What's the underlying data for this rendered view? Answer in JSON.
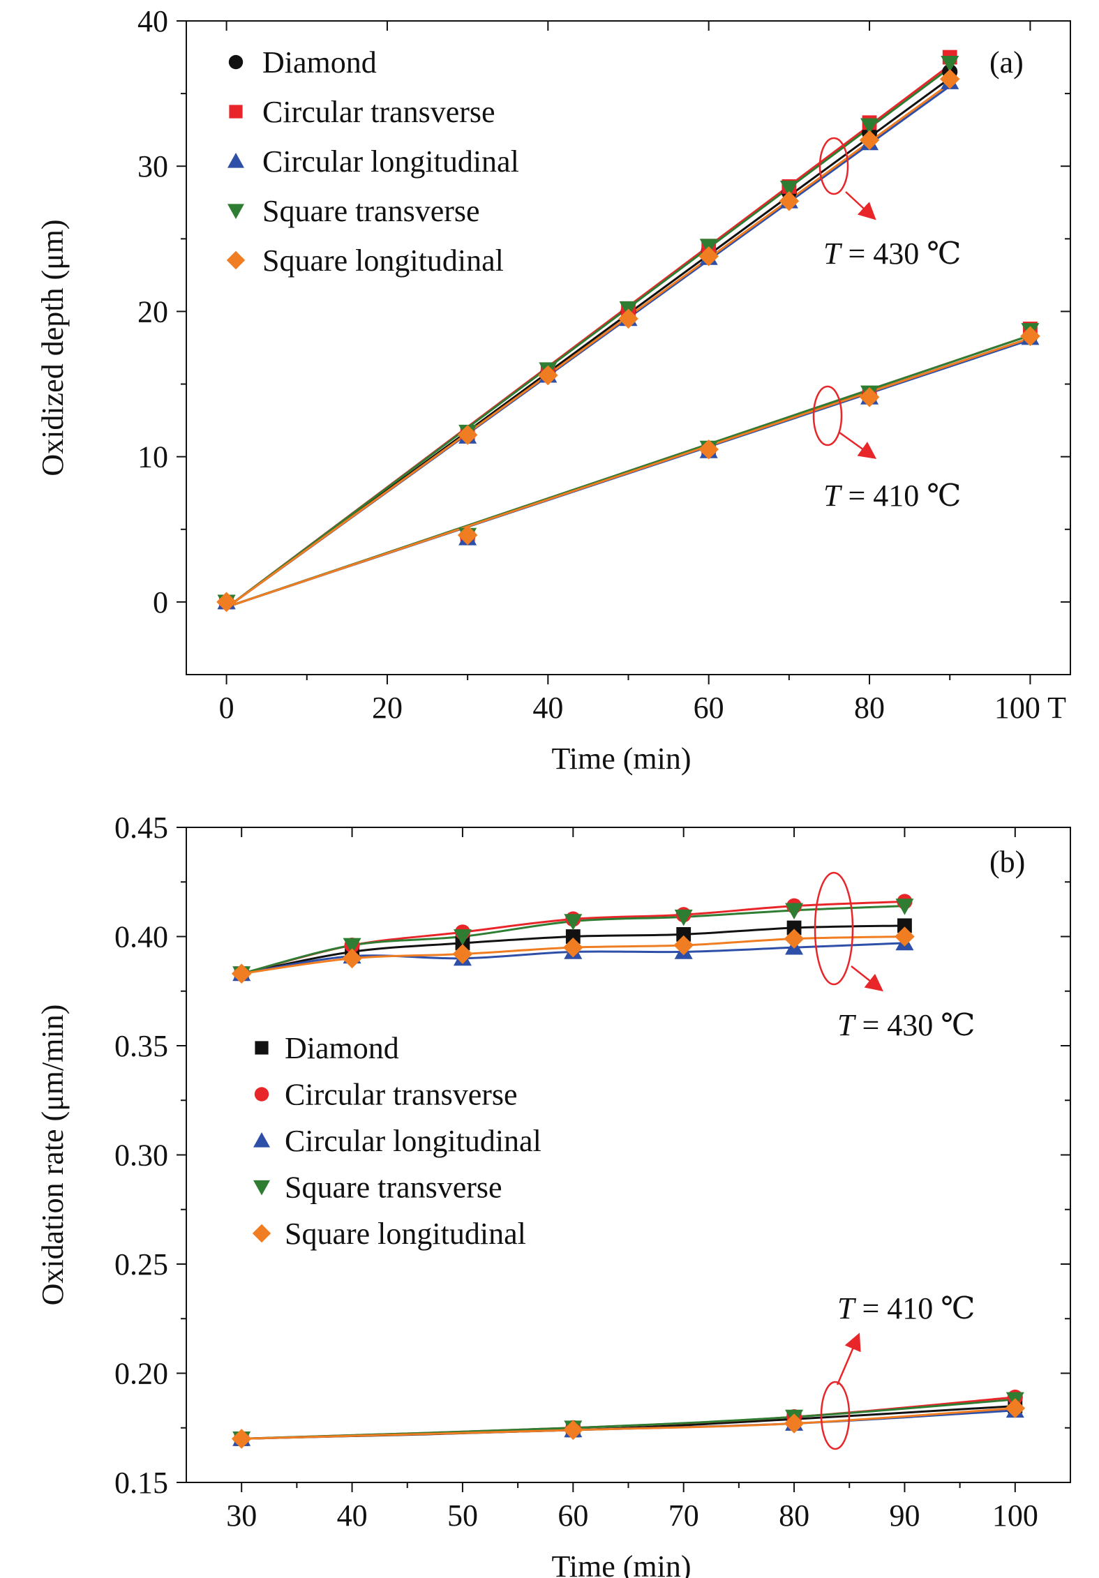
{
  "chart_data": [
    {
      "type": "line",
      "panel_label": "(a)",
      "xlabel": "Time (min)",
      "ylabel": "Oxidized depth (μm)",
      "xlim": [
        -5,
        105
      ],
      "ylim": [
        -5,
        40
      ],
      "xticks": [
        0,
        20,
        40,
        60,
        80,
        100
      ],
      "xtick_labels": [
        "0",
        "20",
        "40",
        "60",
        "80",
        "100 T"
      ],
      "yticks": [
        0,
        10,
        20,
        30,
        40
      ],
      "ytick_labels": [
        "0",
        "10",
        "20",
        "30",
        "40"
      ],
      "legend_position": "top-left",
      "grid": false,
      "annotations": [
        {
          "text_italic": "T",
          "text": " = 430 ℃",
          "series_group": "430"
        },
        {
          "text_italic": "T",
          "text": " = 410 ℃",
          "series_group": "410"
        }
      ],
      "series": [
        {
          "name": "Diamond",
          "color": "#111111",
          "marker": "circle",
          "groups": [
            {
              "temperature": "430",
              "x": [
                0,
                30,
                40,
                50,
                60,
                70,
                80,
                90
              ],
              "y": [
                0,
                11.5,
                15.8,
                20.0,
                24.2,
                28.2,
                32.3,
                36.5
              ],
              "fit": [
                -0.4,
                0.405
              ]
            },
            {
              "temperature": "410",
              "x": [
                0,
                30,
                60,
                80,
                100
              ],
              "y": [
                0,
                4.5,
                10.5,
                14.2,
                18.3
              ],
              "fit": [
                -0.35,
                0.185
              ]
            }
          ]
        },
        {
          "name": "Circular transverse",
          "color": "#e8262a",
          "marker": "square",
          "groups": [
            {
              "temperature": "430",
              "x": [
                0,
                30,
                40,
                50,
                60,
                70,
                80,
                90
              ],
              "y": [
                0,
                11.6,
                15.9,
                20.2,
                24.5,
                28.6,
                33.0,
                37.5
              ],
              "fit": [
                -0.4,
                0.415
              ]
            },
            {
              "temperature": "410",
              "x": [
                0,
                30,
                60,
                80,
                100
              ],
              "y": [
                0,
                4.5,
                10.5,
                14.3,
                18.8
              ],
              "fit": [
                -0.35,
                0.187
              ]
            }
          ]
        },
        {
          "name": "Circular longitudinal",
          "color": "#2e4fa8",
          "marker": "triangle-up",
          "groups": [
            {
              "temperature": "430",
              "x": [
                0,
                30,
                40,
                50,
                60,
                70,
                80,
                90
              ],
              "y": [
                0,
                11.4,
                15.6,
                19.5,
                23.7,
                27.6,
                31.6,
                35.8
              ],
              "fit": [
                -0.4,
                0.399
              ]
            },
            {
              "temperature": "410",
              "x": [
                0,
                30,
                60,
                80,
                100
              ],
              "y": [
                0,
                4.4,
                10.4,
                14.1,
                18.2
              ],
              "fit": [
                -0.35,
                0.184
              ]
            }
          ]
        },
        {
          "name": "Square transverse",
          "color": "#2e7d32",
          "marker": "triangle-down",
          "groups": [
            {
              "temperature": "430",
              "x": [
                0,
                30,
                40,
                50,
                60,
                70,
                80,
                90
              ],
              "y": [
                0,
                11.7,
                16.0,
                20.2,
                24.5,
                28.5,
                32.8,
                37.1
              ],
              "fit": [
                -0.4,
                0.413
              ]
            },
            {
              "temperature": "410",
              "x": [
                0,
                30,
                60,
                80,
                100
              ],
              "y": [
                0,
                4.6,
                10.6,
                14.4,
                18.7
              ],
              "fit": [
                -0.35,
                0.187
              ]
            }
          ]
        },
        {
          "name": "Square longitudinal",
          "color": "#f07d22",
          "marker": "diamond",
          "groups": [
            {
              "temperature": "430",
              "x": [
                0,
                30,
                40,
                50,
                60,
                70,
                80,
                90
              ],
              "y": [
                0,
                11.5,
                15.6,
                19.5,
                23.8,
                27.6,
                31.8,
                36.0
              ],
              "fit": [
                -0.4,
                0.401
              ]
            },
            {
              "temperature": "410",
              "x": [
                0,
                30,
                60,
                80,
                100
              ],
              "y": [
                0,
                4.6,
                10.5,
                14.1,
                18.3
              ],
              "fit": [
                -0.35,
                0.185
              ]
            }
          ]
        }
      ]
    },
    {
      "type": "line",
      "panel_label": "(b)",
      "xlabel": "Time (min)",
      "ylabel": "Oxidation rate (μm/min)",
      "xlim": [
        25,
        105
      ],
      "ylim": [
        0.15,
        0.45
      ],
      "xticks": [
        30,
        40,
        50,
        60,
        70,
        80,
        90,
        100
      ],
      "xtick_labels": [
        "30",
        "40",
        "50",
        "60",
        "70",
        "80",
        "90",
        "100"
      ],
      "yticks": [
        0.15,
        0.2,
        0.25,
        0.3,
        0.35,
        0.4,
        0.45
      ],
      "ytick_labels": [
        "0.15",
        "0.20",
        "0.25",
        "0.30",
        "0.35",
        "0.40",
        "0.45"
      ],
      "legend_position": "center-left",
      "grid": false,
      "annotations": [
        {
          "text_italic": "T",
          "text": " = 430 ℃",
          "series_group": "430"
        },
        {
          "text_italic": "T",
          "text": " = 410 ℃",
          "series_group": "410"
        }
      ],
      "series": [
        {
          "name": "Diamond",
          "color": "#111111",
          "marker": "square",
          "groups": [
            {
              "temperature": "430",
              "x": [
                30,
                40,
                50,
                60,
                70,
                80,
                90
              ],
              "y": [
                0.383,
                0.393,
                0.397,
                0.4,
                0.401,
                0.404,
                0.405
              ]
            },
            {
              "temperature": "410",
              "x": [
                30,
                60,
                80,
                100
              ],
              "y": [
                0.17,
                0.174,
                0.179,
                0.185
              ]
            }
          ]
        },
        {
          "name": "Circular transverse",
          "color": "#e8262a",
          "marker": "circle",
          "groups": [
            {
              "temperature": "430",
              "x": [
                30,
                40,
                50,
                60,
                70,
                80,
                90
              ],
              "y": [
                0.383,
                0.396,
                0.402,
                0.408,
                0.41,
                0.414,
                0.416
              ]
            },
            {
              "temperature": "410",
              "x": [
                30,
                60,
                80,
                100
              ],
              "y": [
                0.17,
                0.175,
                0.18,
                0.189
              ]
            }
          ]
        },
        {
          "name": "Circular longitudinal",
          "color": "#2e4fa8",
          "marker": "triangle-up",
          "groups": [
            {
              "temperature": "430",
              "x": [
                30,
                40,
                50,
                60,
                70,
                80,
                90
              ],
              "y": [
                0.383,
                0.391,
                0.39,
                0.393,
                0.393,
                0.395,
                0.397
              ]
            },
            {
              "temperature": "410",
              "x": [
                30,
                60,
                80,
                100
              ],
              "y": [
                0.17,
                0.174,
                0.177,
                0.183
              ]
            }
          ]
        },
        {
          "name": "Square transverse",
          "color": "#2e7d32",
          "marker": "triangle-down",
          "groups": [
            {
              "temperature": "430",
              "x": [
                30,
                40,
                50,
                60,
                70,
                80,
                90
              ],
              "y": [
                0.383,
                0.396,
                0.4,
                0.407,
                0.409,
                0.412,
                0.414
              ]
            },
            {
              "temperature": "410",
              "x": [
                30,
                60,
                80,
                100
              ],
              "y": [
                0.17,
                0.175,
                0.18,
                0.188
              ]
            }
          ]
        },
        {
          "name": "Square longitudinal",
          "color": "#f07d22",
          "marker": "diamond",
          "groups": [
            {
              "temperature": "430",
              "x": [
                30,
                40,
                50,
                60,
                70,
                80,
                90
              ],
              "y": [
                0.383,
                0.39,
                0.392,
                0.395,
                0.396,
                0.399,
                0.4
              ]
            },
            {
              "temperature": "410",
              "x": [
                30,
                60,
                80,
                100
              ],
              "y": [
                0.17,
                0.174,
                0.177,
                0.184
              ]
            }
          ]
        }
      ]
    }
  ]
}
